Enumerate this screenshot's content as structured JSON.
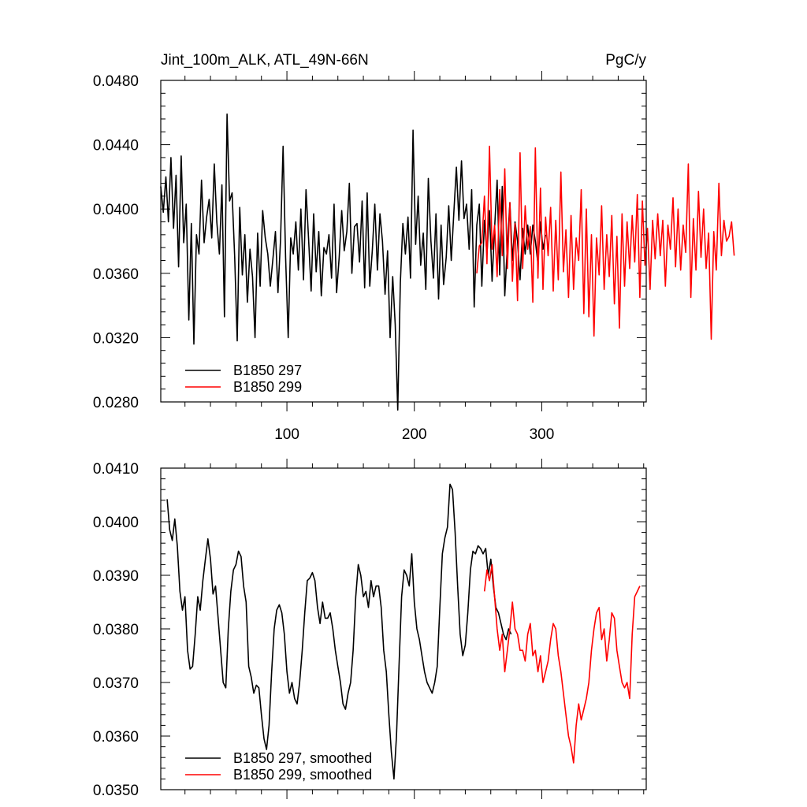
{
  "chart_data": [
    {
      "type": "line",
      "title": "Jint_100m_ALK, ATL_49N-66N",
      "units": "PgC/y",
      "xlabel": "",
      "ylabel": "",
      "xlim": [
        1,
        382
      ],
      "ylim": [
        0.028,
        0.048
      ],
      "x_ticks": [
        100,
        200,
        300
      ],
      "x_tick_labels": [
        "100",
        "200",
        "300"
      ],
      "y_ticks": [
        0.028,
        0.032,
        0.036,
        0.04,
        0.044,
        0.048
      ],
      "y_tick_labels": [
        "0.0280",
        "0.0320",
        "0.0360",
        "0.0400",
        "0.0440",
        "0.0480"
      ],
      "legend_position": "bottom-left",
      "series": [
        {
          "name": "B1850 297",
          "color": "#000000",
          "x_start": 1,
          "x_step": 2,
          "values": [
            0.0414,
            0.0398,
            0.042,
            0.0392,
            0.0432,
            0.0388,
            0.0421,
            0.0364,
            0.0433,
            0.0379,
            0.0403,
            0.0331,
            0.0391,
            0.0316,
            0.0384,
            0.0372,
            0.0418,
            0.0379,
            0.0395,
            0.0406,
            0.0382,
            0.0428,
            0.0392,
            0.0372,
            0.0415,
            0.0333,
            0.0459,
            0.0405,
            0.041,
            0.037,
            0.0318,
            0.0401,
            0.0359,
            0.0384,
            0.0342,
            0.0375,
            0.0358,
            0.032,
            0.0385,
            0.0352,
            0.0399,
            0.0382,
            0.0372,
            0.0352,
            0.0369,
            0.0386,
            0.0348,
            0.0381,
            0.0439,
            0.037,
            0.032,
            0.0382,
            0.0372,
            0.0392,
            0.0362,
            0.04,
            0.0356,
            0.0412,
            0.0382,
            0.0349,
            0.0397,
            0.0361,
            0.0386,
            0.0346,
            0.0376,
            0.0372,
            0.0384,
            0.0357,
            0.0403,
            0.0348,
            0.037,
            0.0399,
            0.0374,
            0.0386,
            0.0416,
            0.036,
            0.0389,
            0.0391,
            0.0367,
            0.0405,
            0.0351,
            0.041,
            0.0352,
            0.0374,
            0.0403,
            0.0362,
            0.0397,
            0.038,
            0.0347,
            0.0374,
            0.032,
            0.0358,
            0.0328,
            0.0275,
            0.0354,
            0.0391,
            0.0372,
            0.0395,
            0.0357,
            0.0449,
            0.0378,
            0.0408,
            0.0365,
            0.0385,
            0.035,
            0.0419,
            0.038,
            0.0357,
            0.0397,
            0.0344,
            0.039,
            0.0353,
            0.037,
            0.0402,
            0.0368,
            0.0398,
            0.0426,
            0.0393,
            0.043,
            0.0394,
            0.0403,
            0.0375,
            0.0412,
            0.0339,
            0.039,
            0.0403,
            0.0352,
            0.0393,
            0.0372,
            0.0399,
            0.0355,
            0.0388,
            0.0418,
            0.0359,
            0.0414,
            0.0346,
            0.0377,
            0.0404,
            0.0368,
            0.0392,
            0.038,
            0.0356,
            0.0388,
            0.0372,
            0.039,
            0.0372,
            0.039,
            0.038,
            0.0366,
            0.0392,
            0.0375,
            0.0384
          ]
        },
        {
          "name": "B1850 299",
          "color": "#ff0000",
          "x_start": 249,
          "x_step": 2,
          "values": [
            0.036,
            0.0377,
            0.0379,
            0.0408,
            0.0366,
            0.0439,
            0.0375,
            0.039,
            0.0358,
            0.0412,
            0.0371,
            0.0425,
            0.0363,
            0.0404,
            0.0355,
            0.0391,
            0.0343,
            0.0435,
            0.0363,
            0.0402,
            0.0375,
            0.0389,
            0.0342,
            0.0438,
            0.0357,
            0.0413,
            0.035,
            0.0395,
            0.0371,
            0.0401,
            0.0349,
            0.0393,
            0.0356,
            0.0423,
            0.0361,
            0.0387,
            0.0345,
            0.0396,
            0.035,
            0.0382,
            0.0368,
            0.0412,
            0.0335,
            0.04,
            0.0333,
            0.0384,
            0.0321,
            0.0382,
            0.0359,
            0.0402,
            0.035,
            0.0384,
            0.0358,
            0.0396,
            0.0341,
            0.0383,
            0.0326,
            0.0397,
            0.0352,
            0.0392,
            0.0363,
            0.0396,
            0.0367,
            0.0409,
            0.0345,
            0.0405,
            0.0365,
            0.0388,
            0.035,
            0.0393,
            0.0369,
            0.0397,
            0.0371,
            0.0393,
            0.0352,
            0.039,
            0.0375,
            0.0407,
            0.0364,
            0.04,
            0.0362,
            0.039,
            0.0373,
            0.0428,
            0.0345,
            0.0394,
            0.0362,
            0.0411,
            0.037,
            0.04,
            0.0363,
            0.0385,
            0.0319,
            0.0386,
            0.0362,
            0.0416,
            0.0371,
            0.0393,
            0.038,
            0.0383,
            0.0392,
            0.0371
          ]
        }
      ]
    },
    {
      "type": "line",
      "title": "",
      "xlabel": "",
      "ylabel": "",
      "xlim": [
        1,
        382
      ],
      "ylim": [
        0.035,
        0.041
      ],
      "x_ticks": [
        100,
        200,
        300
      ],
      "y_ticks": [
        0.035,
        0.036,
        0.037,
        0.038,
        0.039,
        0.04,
        0.041
      ],
      "y_tick_labels": [
        "0.0350",
        "0.0360",
        "0.0370",
        "0.0380",
        "0.0390",
        "0.0400",
        "0.0410"
      ],
      "legend_position": "bottom-left",
      "series": [
        {
          "name": "B1850 297, smoothed",
          "color": "#000000",
          "x_start": 6,
          "x_step": 2,
          "values": [
            0.04042,
            0.03985,
            0.03965,
            0.04005,
            0.03955,
            0.0387,
            0.03835,
            0.0386,
            0.0376,
            0.03725,
            0.0373,
            0.0379,
            0.0386,
            0.03835,
            0.0389,
            0.0393,
            0.03968,
            0.0393,
            0.03865,
            0.0388,
            0.0382,
            0.0376,
            0.037,
            0.0369,
            0.038,
            0.0387,
            0.0391,
            0.0392,
            0.03945,
            0.03935,
            0.0388,
            0.0385,
            0.0373,
            0.0371,
            0.0368,
            0.03695,
            0.0369,
            0.0364,
            0.03595,
            0.03575,
            0.0362,
            0.0372,
            0.038,
            0.03835,
            0.03845,
            0.0383,
            0.0379,
            0.0372,
            0.0368,
            0.037,
            0.0367,
            0.0366,
            0.037,
            0.0376,
            0.0383,
            0.0389,
            0.03895,
            0.03905,
            0.0389,
            0.0384,
            0.0381,
            0.0385,
            0.0382,
            0.0382,
            0.0383,
            0.038,
            0.0376,
            0.0373,
            0.037,
            0.0366,
            0.0365,
            0.0368,
            0.037,
            0.0376,
            0.0386,
            0.0392,
            0.039,
            0.0386,
            0.0387,
            0.0384,
            0.0389,
            0.0386,
            0.0388,
            0.0388,
            0.0384,
            0.0376,
            0.0372,
            0.0364,
            0.0357,
            0.0352,
            0.036,
            0.0373,
            0.0386,
            0.0391,
            0.039,
            0.0388,
            0.0394,
            0.0385,
            0.038,
            0.0378,
            0.0375,
            0.0372,
            0.037,
            0.0369,
            0.0368,
            0.037,
            0.0373,
            0.0384,
            0.0394,
            0.0397,
            0.0399,
            0.0407,
            0.0406,
            0.0398,
            0.0388,
            0.0379,
            0.0375,
            0.0377,
            0.0383,
            0.0391,
            0.03945,
            0.0394,
            0.03955,
            0.0395,
            0.0394,
            0.0395,
            0.039,
            0.0393,
            0.0388,
            0.0384,
            0.0383,
            0.0381,
            0.0379,
            0.0378,
            0.038,
            0.0379
          ]
        },
        {
          "name": "B1850 299, smoothed",
          "color": "#ff0000",
          "x_start": 255,
          "x_step": 2,
          "values": [
            0.0387,
            0.0391,
            0.0389,
            0.0392,
            0.0386,
            0.038,
            0.0376,
            0.0379,
            0.0372,
            0.0376,
            0.038,
            0.0385,
            0.038,
            0.0379,
            0.0376,
            0.0376,
            0.0374,
            0.0379,
            0.0381,
            0.0375,
            0.0376,
            0.0372,
            0.0375,
            0.037,
            0.0372,
            0.0374,
            0.0378,
            0.0381,
            0.038,
            0.0375,
            0.0372,
            0.0368,
            0.0364,
            0.036,
            0.0358,
            0.0355,
            0.0362,
            0.0366,
            0.0363,
            0.0365,
            0.0367,
            0.037,
            0.0376,
            0.038,
            0.0383,
            0.0384,
            0.0378,
            0.038,
            0.0374,
            0.0378,
            0.0383,
            0.0382,
            0.0376,
            0.0373,
            0.037,
            0.0369,
            0.037,
            0.0367,
            0.0379,
            0.0386,
            0.0387,
            0.0388
          ]
        }
      ]
    }
  ]
}
